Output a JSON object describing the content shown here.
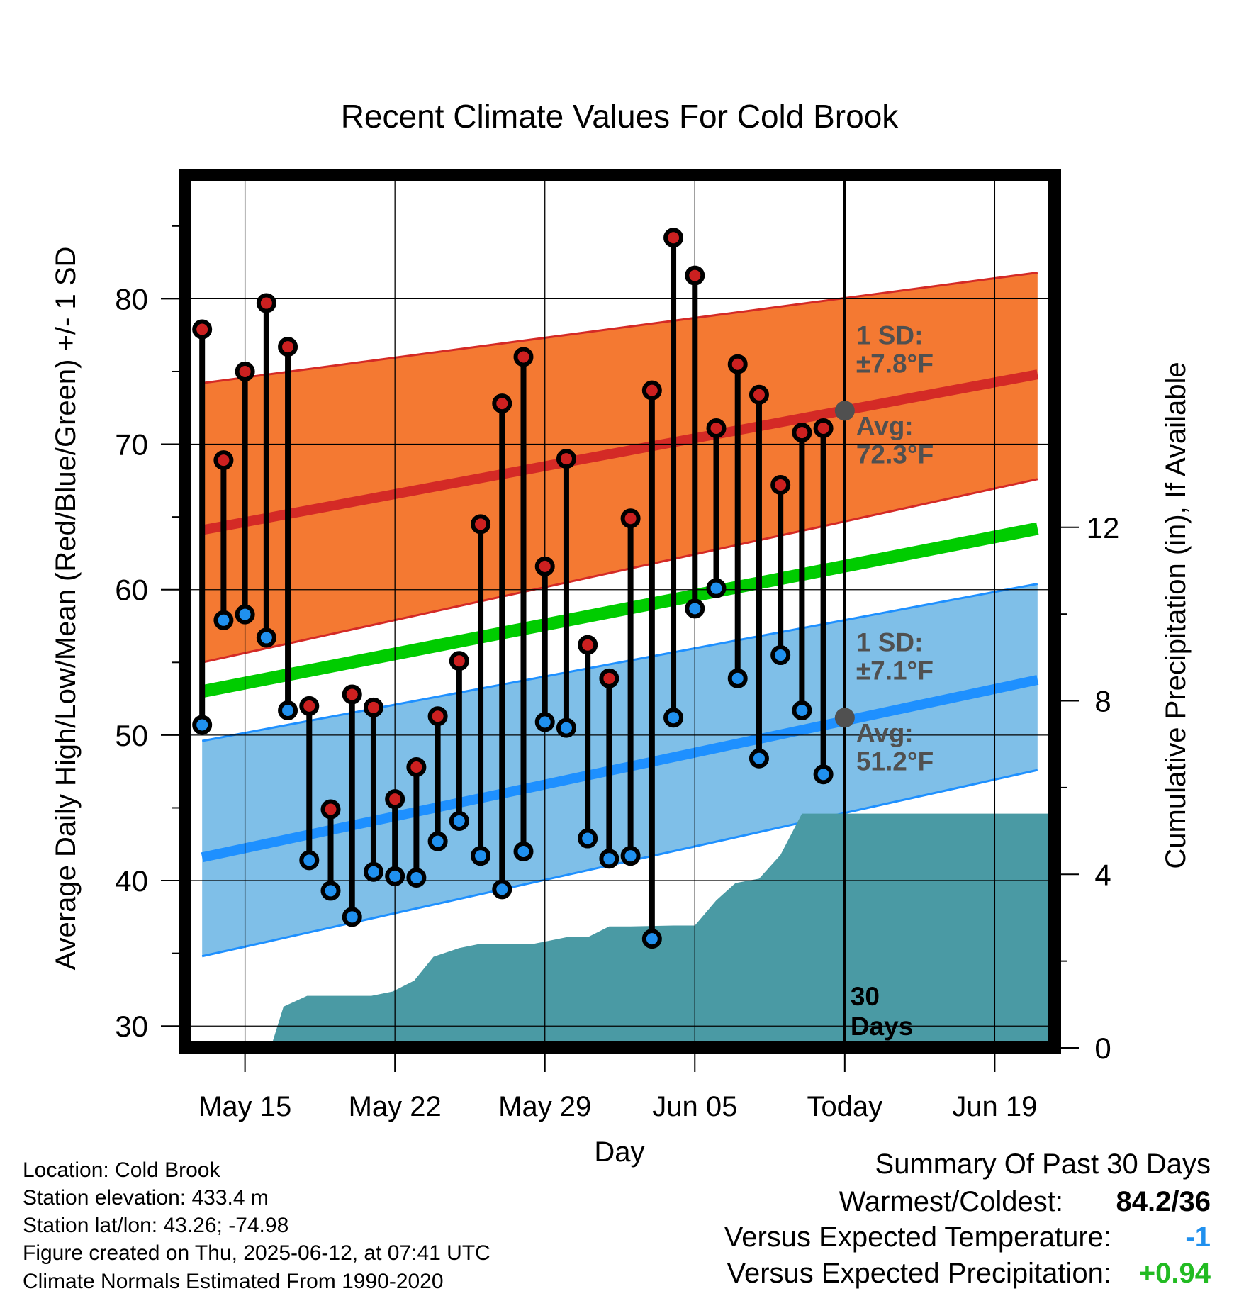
{
  "chart_data": {
    "type": "line",
    "title": "Recent Climate Values For Cold Brook",
    "xlabel": "Day",
    "ylabel": "Average Daily High/Low/Mean (Red/Blue/Green) +/- 1 SD",
    "y2label": "Cumulative Precipitation (in), If Available",
    "x_ticks": [
      "May 15",
      "May 22",
      "May 29",
      "Jun 05",
      "Today",
      "Jun 19"
    ],
    "x_tick_days": [
      0,
      7,
      14,
      21,
      28,
      35
    ],
    "xlim": [
      -2.8,
      37.8
    ],
    "ylim": [
      28.5,
      88.5
    ],
    "y_ticks": [
      30,
      40,
      50,
      60,
      70,
      80
    ],
    "y2lim": [
      0,
      20.12
    ],
    "y2_ticks": [
      0,
      4,
      8,
      12
    ],
    "grid": true,
    "normals": {
      "high_mean": [
        64.1,
        74.8
      ],
      "high_upper": [
        74.2,
        81.8
      ],
      "high_lower": [
        55.0,
        67.6
      ],
      "low_mean": [
        41.6,
        53.8
      ],
      "low_upper": [
        49.6,
        60.4
      ],
      "low_lower": [
        34.8,
        47.6
      ],
      "overall_mean": [
        53.0,
        64.2
      ],
      "days": [
        -2.0,
        37.0
      ]
    },
    "daily_days": [
      -2,
      -1,
      0,
      1,
      2,
      3,
      4,
      5,
      6,
      7,
      8,
      9,
      10,
      11,
      12,
      13,
      14,
      15,
      16,
      17,
      18,
      19,
      20,
      21,
      22,
      23,
      24,
      25,
      26,
      27
    ],
    "series": [
      {
        "name": "High",
        "color": "#cc2020",
        "values": [
          77.9,
          68.9,
          75.0,
          79.7,
          76.7,
          52.0,
          44.9,
          52.8,
          51.9,
          45.6,
          47.8,
          51.3,
          55.1,
          64.5,
          72.8,
          76.0,
          61.6,
          69.0,
          56.2,
          53.9,
          64.9,
          73.7,
          84.2,
          81.6,
          71.1,
          75.5,
          73.4,
          67.2,
          70.8,
          71.1
        ]
      },
      {
        "name": "Low",
        "color": "#2090ee",
        "values": [
          50.7,
          57.9,
          58.3,
          56.7,
          51.7,
          41.4,
          39.3,
          37.5,
          40.6,
          40.3,
          40.2,
          42.7,
          44.1,
          41.7,
          39.4,
          42.0,
          50.9,
          50.5,
          42.9,
          41.5,
          41.7,
          36.0,
          51.2,
          58.7,
          60.1,
          53.9,
          48.4,
          55.5,
          51.7,
          47.3
        ]
      }
    ],
    "precip_days": [
      -2.8,
      1.2,
      1.8,
      2.9,
      5.9,
      6.9,
      7.9,
      8.8,
      10.0,
      11.0,
      13.5,
      15.0,
      16.0,
      17.0,
      18.0,
      20.0,
      21.0,
      22.0,
      22.9,
      24.0,
      25.0,
      26.0,
      26.9,
      28.0,
      37.0,
      37.8
    ],
    "precip_cumulative": [
      0,
      0,
      0.95,
      1.2,
      1.2,
      1.3,
      1.55,
      2.1,
      2.3,
      2.4,
      2.4,
      2.55,
      2.55,
      2.8,
      2.8,
      2.82,
      2.82,
      3.4,
      3.8,
      3.9,
      4.45,
      5.4,
      5.4,
      5.4,
      5.4,
      5.4
    ],
    "today_annotations": {
      "high_sd_label": "1 SD:",
      "high_sd_value": "±7.8°F",
      "high_avg_label": "Avg:",
      "high_avg_value": "72.3°F",
      "high_avg": 72.3,
      "low_sd_label": "1 SD:",
      "low_sd_value": "±7.1°F",
      "low_avg_label": "Avg:",
      "low_avg_value": "51.2°F",
      "low_avg": 51.2,
      "days_number": "30",
      "days_word": "Days"
    },
    "colors": {
      "high_band": "#f47932",
      "high_line": "#d42a26",
      "low_band": "#7fbfe8",
      "low_line": "#1e90ff",
      "mean_line": "#00cc00",
      "precip": "#4a9aa4",
      "annotation": "#505050",
      "high_marker": "#cc2020",
      "low_marker": "#2090ee"
    }
  },
  "info": {
    "location": "Location: Cold Brook",
    "elevation": "Station elevation: 433.4 m",
    "latlon": "Station lat/lon: 43.26; -74.98",
    "created": "Figure created on Thu, 2025-06-12, at 07:41 UTC",
    "normals": "Climate Normals Estimated From 1990-2020"
  },
  "summary": {
    "title": "Summary Of Past 30 Days",
    "warmest_label": "Warmest/Coldest:",
    "warmest_value": "84.2/36",
    "temp_label": "Versus Expected Temperature:",
    "temp_value": "-1",
    "temp_color": "#2090ee",
    "precip_label": "Versus Expected Precipitation:",
    "precip_value": "+0.94",
    "precip_color": "#22bb22"
  }
}
